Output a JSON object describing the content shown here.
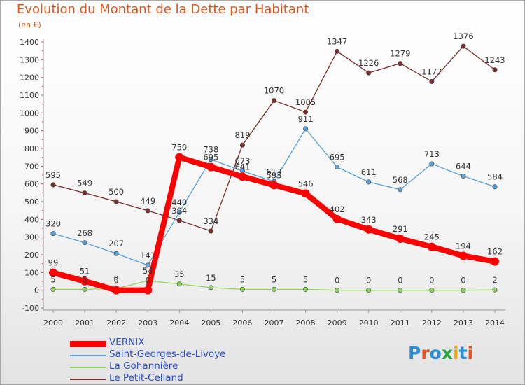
{
  "title": "Evolution du Montant de la Dette par Habitant",
  "subtitle": "(en €)",
  "logo": {
    "text": "Proxiti",
    "colors": [
      "#2a8ed6",
      "#e8511b",
      "#2a8ed6",
      "#2aa63e",
      "#e8a80b",
      "#2a8ed6",
      "#e8511b"
    ]
  },
  "chart_data": {
    "type": "line",
    "x": [
      "2000",
      "2001",
      "2002",
      "2003",
      "2004",
      "2005",
      "2006",
      "2007",
      "2008",
      "2009",
      "2010",
      "2011",
      "2012",
      "2013",
      "2014"
    ],
    "ylim": [
      -100,
      1400
    ],
    "yticks": [
      "-100",
      "0",
      "100",
      "200",
      "300",
      "400",
      "500",
      "600",
      "700",
      "800",
      "900",
      "1000",
      "1100",
      "1200",
      "1300",
      "1400"
    ],
    "grid": false,
    "legend_position": "bottom-left",
    "series": [
      {
        "name": "VERNIX",
        "color": "#ff0000",
        "values": [
          99,
          51,
          0,
          0,
          750,
          695,
          641,
          593,
          546,
          402,
          343,
          291,
          245,
          194,
          162
        ],
        "labels": [
          "99",
          "51",
          "0",
          "0",
          "750",
          "695",
          "641",
          "593",
          "546",
          "402",
          "343",
          "291",
          "245",
          "194",
          "162"
        ]
      },
      {
        "name": "Saint-Georges-de-Livoye",
        "color": "#5a9fd6",
        "values": [
          320,
          268,
          207,
          141,
          440,
          738,
          673,
          613,
          911,
          695,
          611,
          568,
          713,
          644,
          584
        ],
        "labels": [
          "320",
          "268",
          "207",
          "141",
          "440",
          "738",
          "673",
          "613",
          "911",
          "695",
          "611",
          "568",
          "713",
          "644",
          "584"
        ]
      },
      {
        "name": "La Gohannière",
        "color": "#8fd45e",
        "values": [
          5,
          5,
          9,
          54,
          35,
          15,
          5,
          5,
          5,
          0,
          0,
          0,
          0,
          0,
          2
        ],
        "labels": [
          "5",
          "5",
          "9",
          "54",
          "35",
          "15",
          "5",
          "5",
          "5",
          "0",
          "0",
          "0",
          "0",
          "0",
          "2"
        ]
      },
      {
        "name": "Le Petit-Celland",
        "color": "#7a2e2e",
        "values": [
          595,
          549,
          500,
          449,
          394,
          334,
          819,
          1070,
          1005,
          1347,
          1226,
          1279,
          1177,
          1376,
          1243
        ],
        "labels": [
          "595",
          "549",
          "500",
          "449",
          "394",
          "334",
          "819",
          "1070",
          "1005",
          "1347",
          "1226",
          "1279",
          "1177",
          "1376",
          "1243"
        ]
      }
    ]
  }
}
